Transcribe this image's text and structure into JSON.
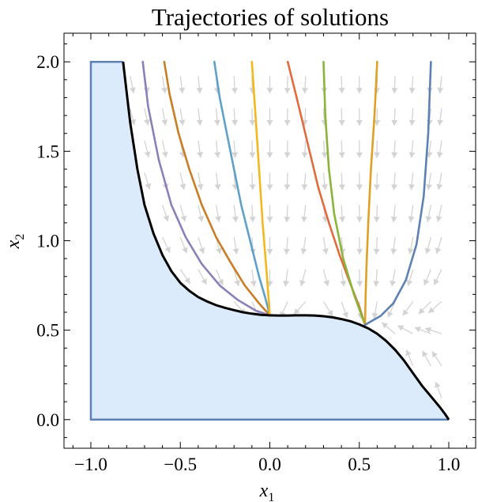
{
  "chart_data": {
    "type": "line",
    "title": "Trajectories of solutions",
    "xlabel": "x",
    "xlabel_subscript": "1",
    "ylabel": "x",
    "ylabel_subscript": "2",
    "xlim": [
      -1.15,
      1.15
    ],
    "ylim": [
      -0.16,
      2.16
    ],
    "xticks": [
      -1.0,
      -0.5,
      0.0,
      0.5,
      1.0
    ],
    "xtick_labels": [
      "−1.0",
      "−0.5",
      "0.0",
      "0.5",
      "1.0"
    ],
    "yticks": [
      0.0,
      0.5,
      1.0,
      1.5,
      2.0
    ],
    "ytick_labels": [
      "0.0",
      "0.5",
      "1.0",
      "1.5",
      "2.0"
    ],
    "grid": false,
    "legend": "none",
    "region": {
      "fill_color": "#dcebfb",
      "edge_color": "#5e81b5",
      "left_edge": [
        [
          -0.82,
          2.0
        ],
        [
          -1.0,
          2.0
        ],
        [
          -1.0,
          0.0
        ],
        [
          1.0,
          0.0
        ]
      ]
    },
    "boundary_curve": {
      "color": "#000000",
      "points": [
        [
          -0.82,
          2.0
        ],
        [
          -0.78,
          1.66
        ],
        [
          -0.74,
          1.4
        ],
        [
          -0.7,
          1.2
        ],
        [
          -0.65,
          1.04
        ],
        [
          -0.6,
          0.92
        ],
        [
          -0.55,
          0.83
        ],
        [
          -0.5,
          0.765
        ],
        [
          -0.45,
          0.72
        ],
        [
          -0.4,
          0.685
        ],
        [
          -0.35,
          0.66
        ],
        [
          -0.3,
          0.64
        ],
        [
          -0.25,
          0.625
        ],
        [
          -0.2,
          0.612
        ],
        [
          -0.15,
          0.6
        ],
        [
          -0.1,
          0.592
        ],
        [
          -0.05,
          0.586
        ],
        [
          0.0,
          0.583
        ],
        [
          0.05,
          0.582
        ],
        [
          0.1,
          0.582
        ],
        [
          0.15,
          0.583
        ],
        [
          0.2,
          0.583
        ],
        [
          0.25,
          0.582
        ],
        [
          0.3,
          0.578
        ],
        [
          0.35,
          0.572
        ],
        [
          0.4,
          0.562
        ],
        [
          0.45,
          0.55
        ],
        [
          0.5,
          0.532
        ],
        [
          0.55,
          0.51
        ],
        [
          0.6,
          0.48
        ],
        [
          0.65,
          0.44
        ],
        [
          0.7,
          0.39
        ],
        [
          0.75,
          0.33
        ],
        [
          0.8,
          0.26
        ],
        [
          0.85,
          0.19
        ],
        [
          0.9,
          0.13
        ],
        [
          0.95,
          0.07
        ],
        [
          0.98,
          0.03
        ],
        [
          1.0,
          0.0
        ]
      ]
    },
    "trajectories": [
      {
        "color": "#8b80b9",
        "points": [
          [
            -0.71,
            2.0
          ],
          [
            -0.68,
            1.75
          ],
          [
            -0.62,
            1.45
          ],
          [
            -0.55,
            1.2
          ],
          [
            -0.47,
            1.02
          ],
          [
            -0.38,
            0.87
          ],
          [
            -0.28,
            0.75
          ],
          [
            -0.18,
            0.67
          ],
          [
            -0.08,
            0.61
          ],
          [
            0.0,
            0.583
          ]
        ]
      },
      {
        "color": "#c97d25",
        "points": [
          [
            -0.59,
            2.0
          ],
          [
            -0.56,
            1.82
          ],
          [
            -0.51,
            1.6
          ],
          [
            -0.45,
            1.4
          ],
          [
            -0.38,
            1.2
          ],
          [
            -0.3,
            1.02
          ],
          [
            -0.22,
            0.88
          ],
          [
            -0.14,
            0.75
          ],
          [
            -0.06,
            0.65
          ],
          [
            0.0,
            0.583
          ]
        ]
      },
      {
        "color": "#5ea1c9",
        "points": [
          [
            -0.31,
            2.0
          ],
          [
            -0.28,
            1.8
          ],
          [
            -0.24,
            1.6
          ],
          [
            -0.2,
            1.4
          ],
          [
            -0.16,
            1.2
          ],
          [
            -0.11,
            1.0
          ],
          [
            -0.06,
            0.8
          ],
          [
            -0.025,
            0.68
          ],
          [
            0.0,
            0.583
          ]
        ]
      },
      {
        "color": "#f2b81c",
        "points": [
          [
            -0.1,
            2.0
          ],
          [
            -0.08,
            1.7
          ],
          [
            -0.06,
            1.4
          ],
          [
            -0.04,
            1.1
          ],
          [
            -0.02,
            0.85
          ],
          [
            0.0,
            0.583
          ]
        ]
      },
      {
        "color": "#e26b3c",
        "points": [
          [
            0.1,
            2.0
          ],
          [
            0.15,
            1.8
          ],
          [
            0.21,
            1.55
          ],
          [
            0.27,
            1.3
          ],
          [
            0.33,
            1.1
          ],
          [
            0.39,
            0.92
          ],
          [
            0.45,
            0.76
          ],
          [
            0.5,
            0.63
          ],
          [
            0.532,
            0.53
          ]
        ]
      },
      {
        "color": "#8ab43a",
        "points": [
          [
            0.3,
            2.0
          ],
          [
            0.31,
            1.7
          ],
          [
            0.33,
            1.4
          ],
          [
            0.36,
            1.15
          ],
          [
            0.41,
            0.9
          ],
          [
            0.47,
            0.7
          ],
          [
            0.532,
            0.53
          ]
        ]
      },
      {
        "color": "#e0a025",
        "points": [
          [
            0.6,
            2.0
          ],
          [
            0.585,
            1.7
          ],
          [
            0.565,
            1.4
          ],
          [
            0.55,
            1.1
          ],
          [
            0.54,
            0.85
          ],
          [
            0.535,
            0.68
          ],
          [
            0.532,
            0.53
          ]
        ]
      },
      {
        "color": "#5e81b5",
        "points": [
          [
            0.9,
            2.0
          ],
          [
            0.885,
            1.6
          ],
          [
            0.86,
            1.25
          ],
          [
            0.82,
            0.98
          ],
          [
            0.76,
            0.78
          ],
          [
            0.69,
            0.65
          ],
          [
            0.62,
            0.58
          ],
          [
            0.532,
            0.53
          ]
        ]
      }
    ],
    "vector_field": {
      "color": "#d3d3d3",
      "columns": [
        -0.78,
        -0.7,
        -0.6,
        -0.5,
        -0.4,
        -0.3,
        -0.2,
        -0.1,
        0.0,
        0.1,
        0.2,
        0.3,
        0.4,
        0.5,
        0.6,
        0.7,
        0.8,
        0.9,
        0.96
      ],
      "rows": [
        0.12,
        0.3,
        0.48,
        0.66,
        0.84,
        1.02,
        1.2,
        1.38,
        1.56,
        1.74,
        1.92
      ]
    }
  }
}
